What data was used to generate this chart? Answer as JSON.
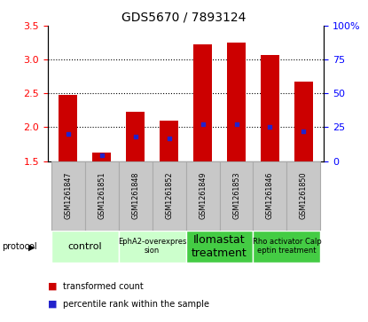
{
  "title": "GDS5670 / 7893124",
  "samples": [
    "GSM1261847",
    "GSM1261851",
    "GSM1261848",
    "GSM1261852",
    "GSM1261849",
    "GSM1261853",
    "GSM1261846",
    "GSM1261850"
  ],
  "transformed_counts": [
    2.48,
    1.63,
    2.23,
    2.1,
    3.22,
    3.25,
    3.07,
    2.68
  ],
  "percentile_ranks": [
    20,
    4,
    18,
    17,
    27,
    27,
    25,
    22
  ],
  "ylim_left": [
    1.5,
    3.5
  ],
  "ylim_right": [
    0,
    100
  ],
  "yticks_left": [
    1.5,
    2.0,
    2.5,
    3.0,
    3.5
  ],
  "yticks_right": [
    0,
    25,
    50,
    75,
    100
  ],
  "protocols": [
    {
      "label": "control",
      "span": [
        0,
        2
      ],
      "color": "#ccffcc",
      "fontsize": 8
    },
    {
      "label": "EphA2-overexpres\nsion",
      "span": [
        2,
        4
      ],
      "color": "#ccffcc",
      "fontsize": 6
    },
    {
      "label": "Ilomastat\ntreatment",
      "span": [
        4,
        6
      ],
      "color": "#44cc44",
      "fontsize": 9
    },
    {
      "label": "Rho activator Calp\neptin treatment",
      "span": [
        6,
        8
      ],
      "color": "#44cc44",
      "fontsize": 6
    }
  ],
  "bar_color": "#cc0000",
  "blue_color": "#2222cc",
  "bar_width": 0.55,
  "sample_bg_color": "#c8c8c8",
  "sample_border_color": "#aaaaaa"
}
